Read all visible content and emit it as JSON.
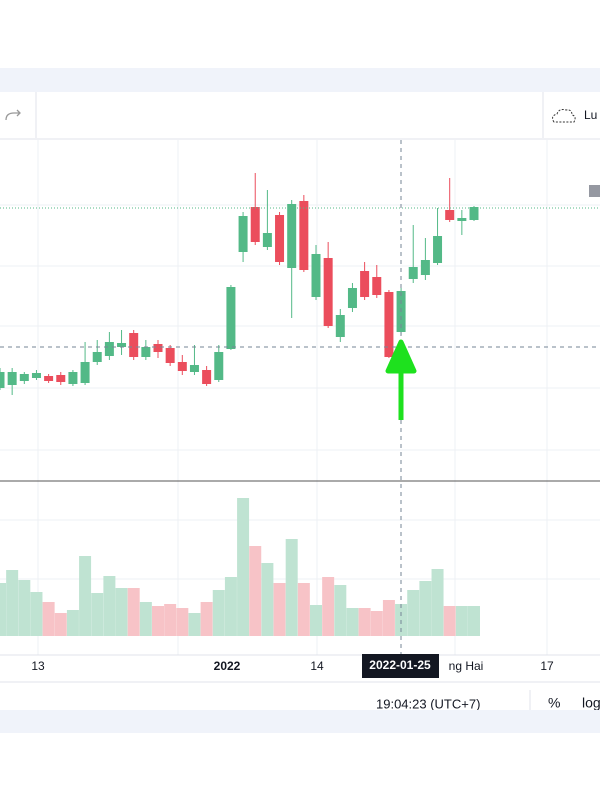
{
  "toolbar": {
    "cloud_label": "Lu"
  },
  "chart_data": {
    "type": "candlestick",
    "open": [
      92,
      95,
      99,
      102,
      104,
      105,
      96,
      97,
      118,
      124,
      133,
      147,
      123,
      136,
      132,
      118,
      108,
      110,
      100,
      131,
      228,
      273,
      233,
      265,
      212,
      279,
      183,
      222,
      143,
      172,
      209,
      203,
      188,
      148,
      201,
      205,
      217,
      270,
      259,
      260
    ],
    "high": [
      112,
      112,
      108,
      110,
      106,
      108,
      110,
      138,
      140,
      148,
      150,
      150,
      140,
      140,
      135,
      125,
      135,
      114,
      135,
      195,
      268,
      307,
      290,
      268,
      280,
      285,
      235,
      238,
      171,
      197,
      218,
      215,
      190,
      192,
      255,
      242,
      272,
      302,
      270,
      274
    ],
    "low": [
      90,
      85,
      96,
      100,
      97,
      95,
      94,
      95,
      115,
      120,
      125,
      120,
      120,
      122,
      114,
      105,
      105,
      94,
      98,
      130,
      218,
      235,
      230,
      215,
      162,
      208,
      180,
      152,
      138,
      168,
      180,
      182,
      122,
      145,
      197,
      200,
      215,
      258,
      245,
      259
    ],
    "close": [
      108,
      108,
      106,
      107,
      99,
      98,
      108,
      118,
      128,
      138,
      137,
      123,
      133,
      128,
      117,
      109,
      115,
      96,
      128,
      193,
      264,
      238,
      247,
      218,
      276,
      210,
      226,
      154,
      165,
      192,
      183,
      185,
      123,
      189,
      213,
      220,
      244,
      260,
      262,
      273
    ],
    "volume": [
      53,
      66,
      56,
      44,
      34,
      23,
      26,
      80,
      43,
      60,
      48,
      48,
      34,
      30,
      32,
      28,
      23,
      34,
      46,
      59,
      138,
      90,
      73,
      53,
      97,
      53,
      31,
      59,
      51,
      28,
      28,
      25,
      36,
      32,
      46,
      55,
      67,
      30,
      30,
      30
    ],
    "ylim": [
      0,
      340
    ],
    "volume_ylim": [
      0,
      160
    ],
    "up_color": "#53b987",
    "down_color": "#eb4d5c",
    "up_volume_color": "#bfe3d2",
    "down_volume_color": "#f7c3c7",
    "x_labels": [
      "13",
      "2022",
      "14",
      "ng Hai",
      "17"
    ],
    "crosshair_label": "2022-01-25"
  },
  "status_bar": {
    "time": "19:04:23 (UTC+7)",
    "percent": "%",
    "log": "log"
  }
}
